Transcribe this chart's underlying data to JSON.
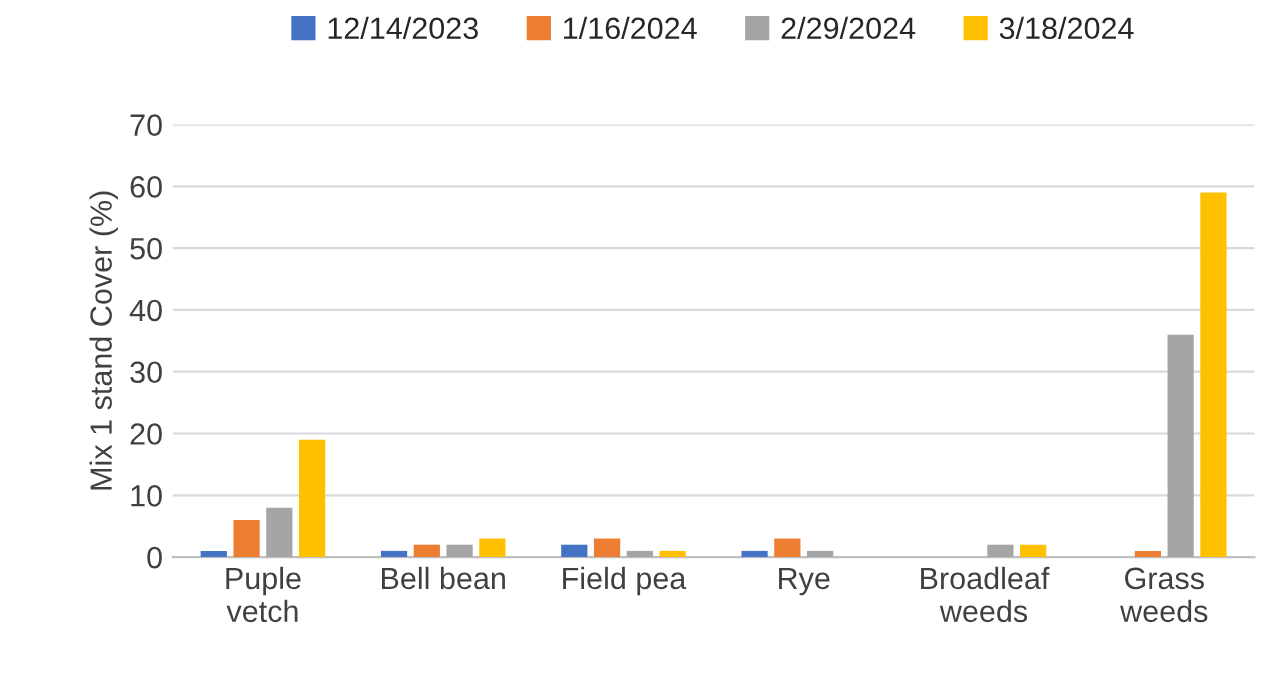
{
  "chart_data": {
    "type": "bar",
    "categories": [
      "Puple\nvetch",
      "Bell bean",
      "Field pea",
      "Rye",
      "Broadleaf\nweeds",
      "Grass\nweeds"
    ],
    "series": [
      {
        "name": "12/14/2023",
        "color": "#4472c4",
        "values": [
          1,
          1,
          2,
          1,
          null,
          null
        ]
      },
      {
        "name": "1/16/2024",
        "color": "#ed7d31",
        "values": [
          6,
          2,
          3,
          3,
          null,
          1
        ]
      },
      {
        "name": "2/29/2024",
        "color": "#a5a5a5",
        "values": [
          8,
          2,
          1,
          1,
          2,
          36
        ]
      },
      {
        "name": "3/18/2024",
        "color": "#ffc000",
        "values": [
          19,
          3,
          1,
          null,
          2,
          59
        ]
      }
    ],
    "ylabel": "Mix 1 stand Cover (%)",
    "ylim": [
      0,
      70
    ],
    "yticks": [
      0,
      10,
      20,
      30,
      40,
      50,
      60,
      70
    ],
    "grid": "y",
    "legend": "top"
  }
}
